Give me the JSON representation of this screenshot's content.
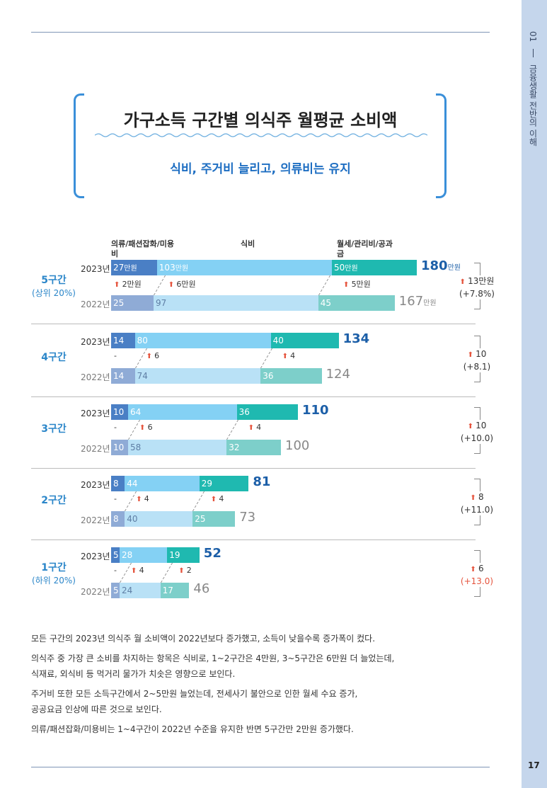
{
  "sidebar": {
    "section": "01",
    "text": "금융생활 전반의 이해"
  },
  "page_number": "17",
  "header": {
    "title": "가구소득 구간별 의식주 월평균 소비액",
    "subtitle": "식비, 주거비 늘리고, 의류비는 유지"
  },
  "chart_data": {
    "type": "bar",
    "orientation": "horizontal-stacked",
    "title": "가구소득 구간별 의식주 월평균 소비액",
    "unit": "만원",
    "series_labels": [
      "의류/패션잡화/미용비",
      "식비",
      "월세/관리비/공과금"
    ],
    "colors": {
      "c1": "#4a7fc5",
      "c2": "#84d1f4",
      "c3": "#1fb9b0",
      "c1_old": "#8fabd6",
      "c2_old": "#b9e1f6",
      "c3_old": "#7dcfca"
    },
    "groups": [
      {
        "label": "5구간",
        "sublabel": "(상위 20%)",
        "year_new": "2023년",
        "year_old": "2022년",
        "y2023": [
          27,
          103,
          50
        ],
        "y2022": [
          25,
          97,
          45
        ],
        "total2023": 180,
        "total2022": 167,
        "change": [
          "2만원",
          "6만원",
          "5만원"
        ],
        "total_change": "13만원",
        "total_change_pct": "(+7.8%)"
      },
      {
        "label": "4구간",
        "sublabel": "",
        "year_new": "2023년",
        "year_old": "2022년",
        "y2023": [
          14,
          80,
          40
        ],
        "y2022": [
          14,
          74,
          36
        ],
        "total2023": 134,
        "total2022": 124,
        "change": [
          "-",
          "6",
          "4"
        ],
        "total_change": "10",
        "total_change_pct": "(+8.1)"
      },
      {
        "label": "3구간",
        "sublabel": "",
        "year_new": "2023년",
        "year_old": "2022년",
        "y2023": [
          10,
          64,
          36
        ],
        "y2022": [
          10,
          58,
          32
        ],
        "total2023": 110,
        "total2022": 100,
        "change": [
          "-",
          "6",
          "4"
        ],
        "total_change": "10",
        "total_change_pct": "(+10.0)"
      },
      {
        "label": "2구간",
        "sublabel": "",
        "year_new": "2023년",
        "year_old": "2022년",
        "y2023": [
          8,
          44,
          29
        ],
        "y2022": [
          8,
          40,
          25
        ],
        "total2023": 81,
        "total2022": 73,
        "change": [
          "-",
          "4",
          "4"
        ],
        "total_change": "8",
        "total_change_pct": "(+11.0)"
      },
      {
        "label": "1구간",
        "sublabel": "(하위 20%)",
        "year_new": "2023년",
        "year_old": "2022년",
        "y2023": [
          5,
          28,
          19
        ],
        "y2022": [
          5,
          24,
          17
        ],
        "total2023": 52,
        "total2022": 46,
        "change": [
          "-",
          "4",
          "2"
        ],
        "total_change": "6",
        "total_change_pct": "(+13.0)"
      }
    ]
  },
  "paragraphs": [
    "모든 구간의 2023년 의식주 월 소비액이 2022년보다 증가했고, 소득이 낮을수록 증가폭이 컸다.",
    "의식주 중 가장 큰 소비를 차지하는 항목은 식비로, 1~2구간은 4만원, 3~5구간은 6만원 더 늘었는데,",
    "식재료, 외식비 등 먹거리 물가가 치솟은 영향으로 보인다.",
    "주거비 또한 모든 소득구간에서 2~5만원 늘었는데, 전세사기 불안으로 인한 월세 수요 증가,",
    "공공요금 인상에 따른 것으로 보인다.",
    "의류/패션잡화/미용비는 1~4구간이 2022년 수준을 유지한 반면 5구간만 2만원 증가했다."
  ]
}
